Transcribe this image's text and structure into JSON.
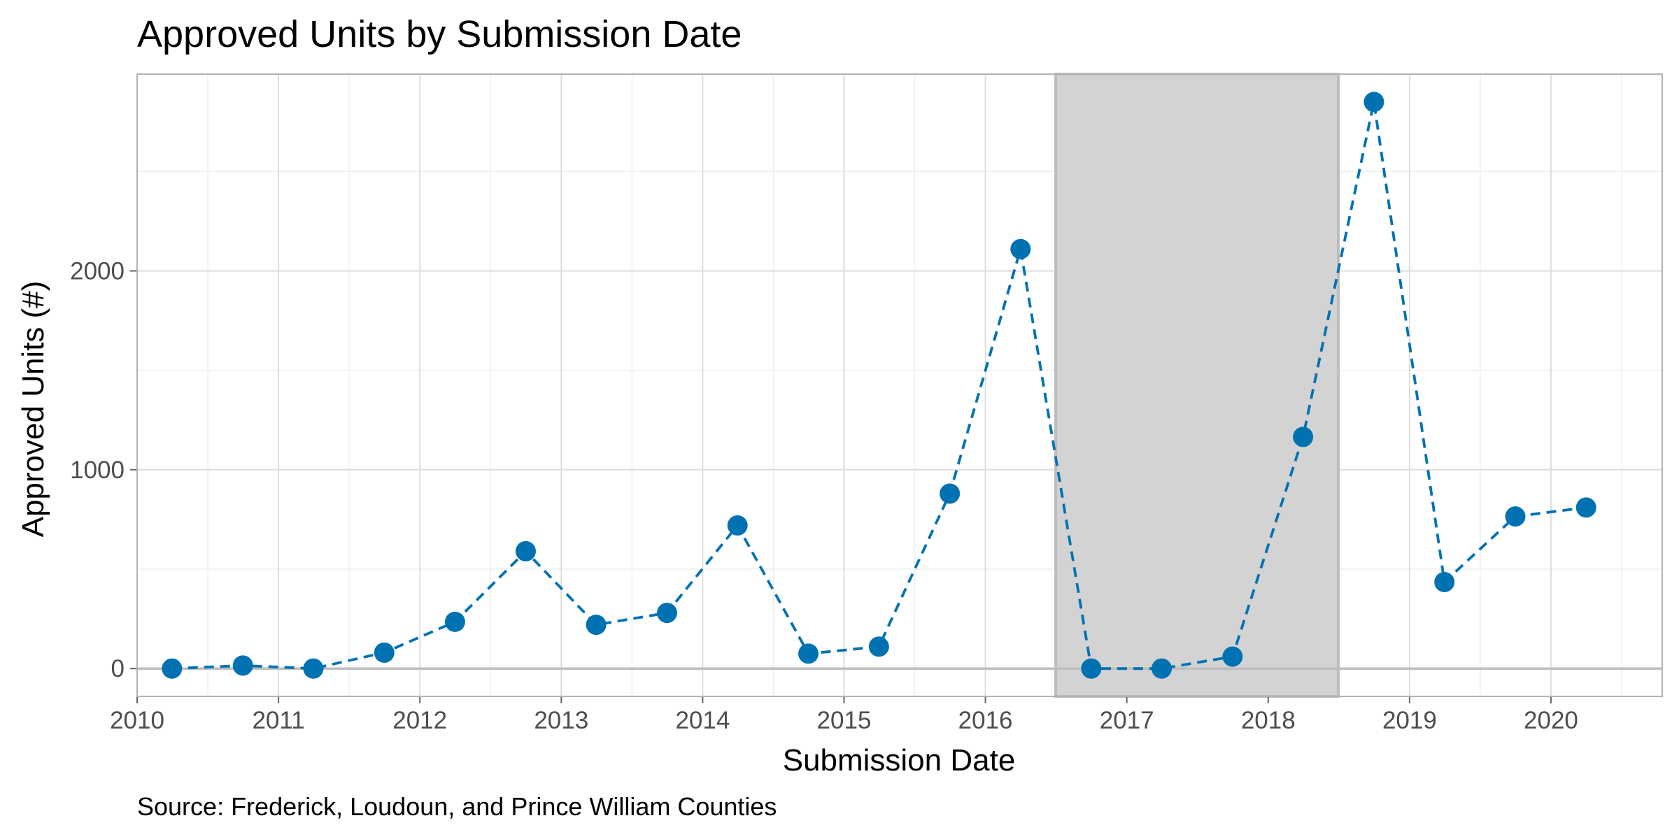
{
  "chart_data": {
    "type": "line",
    "title": "Approved Units by Submission Date",
    "xlabel": "Submission Date",
    "ylabel": "Approved Units (#)",
    "caption": "Source: Frederick, Loudoun, and Prince William Counties",
    "x_ticks": [
      "2010",
      "2011",
      "2012",
      "2013",
      "2014",
      "2015",
      "2016",
      "2017",
      "2018",
      "2019",
      "2020"
    ],
    "y_ticks": [
      "0",
      "1000",
      "2000"
    ],
    "xlim": [
      "2010-01-01",
      "2020-10-15"
    ],
    "ylim": [
      -140,
      2990
    ],
    "grid": true,
    "legend": "none",
    "line_style": "dashed",
    "series_color": "#0072B2",
    "shaded_region": {
      "from": "2016-07-01",
      "to": "2018-07-01",
      "color": "#d3d3d3"
    },
    "series": [
      {
        "x": [
          "2010-04-01",
          "2010-10-01",
          "2011-04-01",
          "2011-10-01",
          "2012-04-01",
          "2012-10-01",
          "2013-04-01",
          "2013-10-01",
          "2014-04-01",
          "2014-10-01",
          "2015-04-01",
          "2015-10-01",
          "2016-04-01",
          "2016-10-01",
          "2017-04-01",
          "2017-10-01",
          "2018-04-01",
          "2018-10-01",
          "2019-04-01",
          "2019-10-01",
          "2020-04-01"
        ],
        "values": [
          0,
          15,
          0,
          80,
          235,
          590,
          220,
          280,
          720,
          75,
          110,
          880,
          2110,
          0,
          0,
          60,
          1165,
          2850,
          435,
          765,
          810
        ]
      }
    ]
  }
}
